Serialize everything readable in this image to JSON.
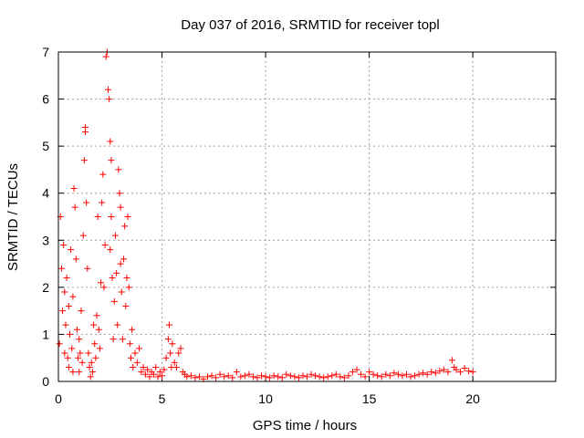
{
  "chart_data": {
    "type": "scatter",
    "title": "Day 037 of 2016, SRMTID for receiver topl",
    "xlabel": "GPS time / hours",
    "ylabel": "SRMTID / TECUs",
    "xlim": [
      0,
      24
    ],
    "ylim": [
      0,
      7
    ],
    "xticks": [
      0,
      5,
      10,
      15,
      20
    ],
    "yticks": [
      0,
      1,
      2,
      3,
      4,
      5,
      6,
      7
    ],
    "grid": true,
    "marker": "plus",
    "color": "#ff0000",
    "series": [
      {
        "name": "SRMTID",
        "x": [
          0.05,
          0.1,
          0.15,
          0.2,
          0.25,
          0.3,
          0.3,
          0.35,
          0.4,
          0.45,
          0.5,
          0.5,
          0.55,
          0.6,
          0.65,
          0.7,
          0.7,
          0.75,
          0.8,
          0.85,
          0.9,
          0.95,
          1.0,
          1.0,
          1.05,
          1.1,
          1.15,
          1.2,
          1.25,
          1.3,
          1.3,
          1.35,
          1.4,
          1.45,
          1.5,
          1.55,
          1.6,
          1.65,
          1.7,
          1.75,
          1.8,
          1.85,
          1.9,
          1.95,
          2.0,
          2.05,
          2.1,
          2.15,
          2.2,
          2.25,
          2.3,
          2.35,
          2.4,
          2.45,
          2.5,
          2.5,
          2.55,
          2.55,
          2.6,
          2.65,
          2.7,
          2.75,
          2.8,
          2.85,
          2.9,
          2.95,
          3.0,
          3.0,
          3.05,
          3.1,
          3.15,
          3.2,
          3.25,
          3.3,
          3.35,
          3.4,
          3.45,
          3.5,
          3.55,
          3.6,
          3.7,
          3.8,
          3.9,
          4.0,
          4.1,
          4.2,
          4.3,
          4.4,
          4.5,
          4.6,
          4.7,
          4.8,
          4.9,
          5.0,
          5.1,
          5.2,
          5.3,
          5.35,
          5.4,
          5.45,
          5.5,
          5.6,
          5.7,
          5.8,
          5.9,
          6.0,
          6.1,
          6.2,
          6.4,
          6.6,
          6.8,
          7.0,
          7.2,
          7.4,
          7.6,
          7.8,
          8.0,
          8.2,
          8.4,
          8.6,
          8.8,
          9.0,
          9.2,
          9.4,
          9.6,
          9.8,
          10.0,
          10.2,
          10.4,
          10.6,
          10.8,
          11.0,
          11.2,
          11.4,
          11.6,
          11.8,
          12.0,
          12.2,
          12.4,
          12.6,
          12.8,
          13.0,
          13.2,
          13.4,
          13.6,
          13.8,
          14.0,
          14.2,
          14.4,
          14.6,
          14.8,
          15.0,
          15.2,
          15.4,
          15.6,
          15.8,
          16.0,
          16.2,
          16.4,
          16.6,
          16.8,
          17.0,
          17.2,
          17.4,
          17.6,
          17.8,
          18.0,
          18.2,
          18.4,
          18.6,
          18.8,
          19.0,
          19.1,
          19.2,
          19.4,
          19.6,
          19.8,
          20.0
        ],
        "y": [
          0.8,
          3.5,
          2.4,
          1.5,
          2.9,
          0.6,
          1.9,
          1.2,
          2.2,
          0.5,
          1.6,
          0.3,
          1.0,
          2.8,
          0.7,
          1.8,
          0.2,
          4.1,
          3.7,
          2.6,
          1.1,
          0.5,
          0.9,
          0.2,
          0.6,
          1.5,
          0.4,
          3.1,
          4.7,
          5.4,
          5.3,
          3.8,
          2.4,
          0.6,
          0.3,
          0.1,
          0.4,
          0.2,
          1.2,
          0.8,
          0.5,
          1.4,
          3.5,
          1.1,
          0.7,
          2.1,
          3.8,
          4.4,
          2.0,
          2.9,
          6.9,
          7.0,
          6.2,
          6.0,
          5.1,
          2.8,
          3.5,
          4.7,
          2.2,
          0.9,
          1.7,
          3.1,
          2.3,
          1.2,
          4.5,
          4.0,
          3.7,
          2.5,
          1.9,
          0.9,
          2.6,
          3.3,
          1.6,
          2.2,
          3.5,
          2.0,
          0.8,
          0.5,
          1.1,
          0.3,
          0.6,
          0.4,
          0.7,
          0.2,
          0.3,
          0.15,
          0.25,
          0.1,
          0.2,
          0.15,
          0.3,
          0.1,
          0.2,
          0.12,
          0.25,
          0.5,
          0.9,
          1.2,
          0.6,
          0.3,
          0.8,
          0.4,
          0.3,
          0.6,
          0.7,
          0.2,
          0.15,
          0.1,
          0.12,
          0.08,
          0.1,
          0.05,
          0.1,
          0.12,
          0.08,
          0.15,
          0.1,
          0.12,
          0.08,
          0.2,
          0.1,
          0.12,
          0.15,
          0.1,
          0.08,
          0.12,
          0.1,
          0.08,
          0.12,
          0.1,
          0.08,
          0.15,
          0.12,
          0.1,
          0.08,
          0.12,
          0.1,
          0.15,
          0.12,
          0.1,
          0.08,
          0.1,
          0.12,
          0.15,
          0.1,
          0.08,
          0.12,
          0.2,
          0.25,
          0.15,
          0.1,
          0.2,
          0.15,
          0.12,
          0.1,
          0.15,
          0.12,
          0.18,
          0.15,
          0.12,
          0.15,
          0.1,
          0.12,
          0.15,
          0.18,
          0.15,
          0.2,
          0.18,
          0.22,
          0.25,
          0.2,
          0.45,
          0.3,
          0.25,
          0.2,
          0.28,
          0.22,
          0.2
        ]
      }
    ]
  }
}
